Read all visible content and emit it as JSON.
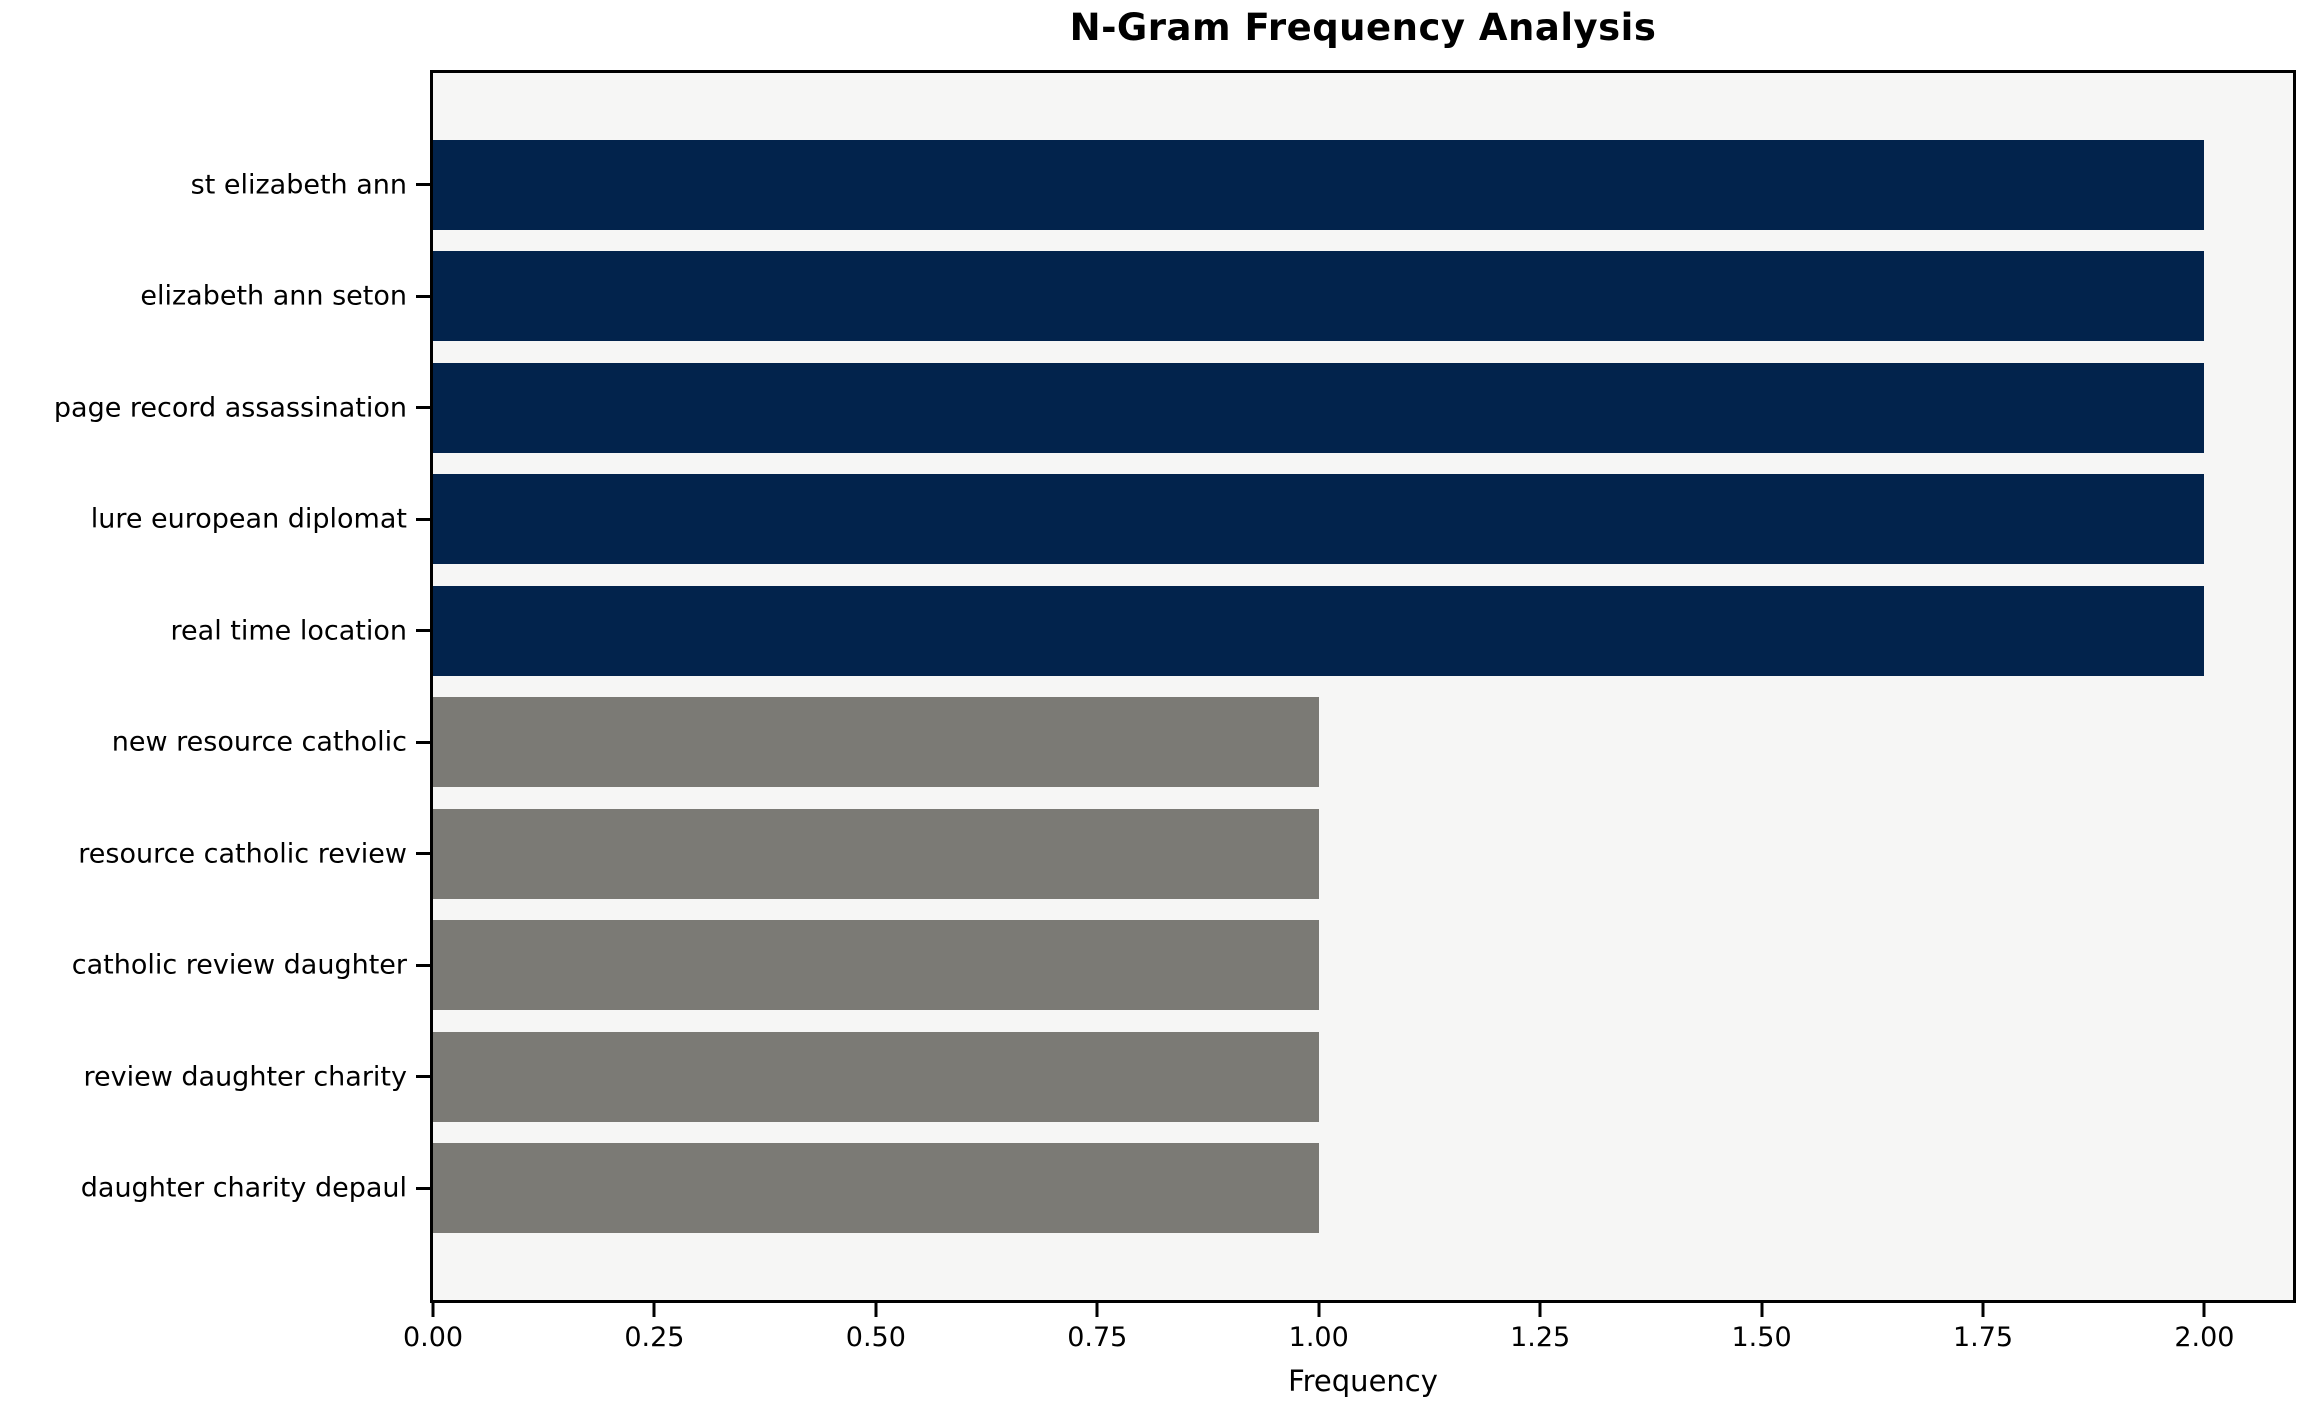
{
  "chart_data": {
    "type": "bar",
    "orientation": "horizontal",
    "title": "N-Gram Frequency Analysis",
    "xlabel": "Frequency",
    "ylabel": "",
    "categories": [
      "st elizabeth ann",
      "elizabeth ann seton",
      "page record assassination",
      "lure european diplomat",
      "real time location",
      "new resource catholic",
      "resource catholic review",
      "catholic review daughter",
      "review daughter charity",
      "daughter charity depaul"
    ],
    "values": [
      2,
      2,
      2,
      2,
      2,
      1,
      1,
      1,
      1,
      1
    ],
    "bar_colors": [
      "#02234c",
      "#02234c",
      "#02234c",
      "#02234c",
      "#02234c",
      "#7b7a75",
      "#7b7a75",
      "#7b7a75",
      "#7b7a75",
      "#7b7a75"
    ],
    "xlim": [
      0,
      2.1
    ],
    "xticks": [
      "0.00",
      "0.25",
      "0.50",
      "0.75",
      "1.00",
      "1.25",
      "1.50",
      "1.75",
      "2.00"
    ],
    "xtick_values": [
      0,
      0.25,
      0.5,
      0.75,
      1.0,
      1.25,
      1.5,
      1.75,
      2.0
    ],
    "grid": false,
    "legend": null,
    "colors": {
      "navy_bar": "#02234c",
      "gray_bar": "#7b7a75",
      "plot_background": "#f6f6f5",
      "spine": "#000000",
      "text": "#000000",
      "figure_background": "#ffffff"
    }
  }
}
